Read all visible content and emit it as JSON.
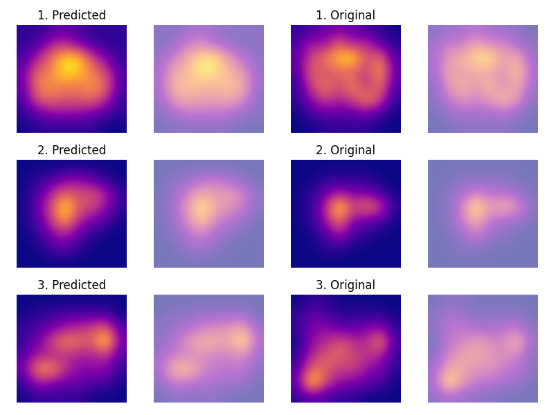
{
  "chart_data": [
    {
      "type": "heatmap",
      "title": "1. Predicted",
      "tick_labels": false,
      "cells": [
        [
          0.1,
          0.1,
          0.15,
          0.2,
          0.15,
          0.1,
          0.1,
          0.1
        ],
        [
          0.1,
          0.15,
          0.35,
          0.4,
          0.25,
          0.15,
          0.1,
          0.1
        ],
        [
          0.15,
          0.35,
          0.55,
          0.8,
          0.8,
          0.45,
          0.25,
          0.1
        ],
        [
          0.2,
          0.55,
          0.6,
          0.85,
          0.75,
          0.6,
          0.45,
          0.15
        ],
        [
          0.2,
          0.6,
          0.65,
          0.6,
          0.6,
          0.65,
          0.55,
          0.15
        ],
        [
          0.15,
          0.5,
          0.55,
          0.5,
          0.5,
          0.55,
          0.4,
          0.1
        ],
        [
          0.1,
          0.2,
          0.3,
          0.3,
          0.3,
          0.25,
          0.15,
          0.1
        ],
        [
          0.05,
          0.1,
          0.1,
          0.1,
          0.1,
          0.1,
          0.05,
          0.05
        ]
      ]
    },
    {
      "type": "heatmap",
      "title": "1. Original",
      "tick_labels": false,
      "cells": [
        [
          0.1,
          0.15,
          0.2,
          0.25,
          0.2,
          0.15,
          0.1,
          0.05
        ],
        [
          0.15,
          0.35,
          0.3,
          0.55,
          0.35,
          0.4,
          0.2,
          0.1
        ],
        [
          0.2,
          0.45,
          0.6,
          0.75,
          0.85,
          0.45,
          0.6,
          0.15
        ],
        [
          0.15,
          0.55,
          0.45,
          0.55,
          0.5,
          0.4,
          0.7,
          0.2
        ],
        [
          0.1,
          0.45,
          0.6,
          0.45,
          0.65,
          0.35,
          0.6,
          0.15
        ],
        [
          0.1,
          0.3,
          0.45,
          0.35,
          0.45,
          0.65,
          0.45,
          0.1
        ],
        [
          0.05,
          0.15,
          0.2,
          0.2,
          0.2,
          0.25,
          0.15,
          0.05
        ],
        [
          0.05,
          0.05,
          0.1,
          0.1,
          0.1,
          0.1,
          0.05,
          0.05
        ]
      ]
    },
    {
      "type": "heatmap",
      "title": "2. Predicted",
      "tick_labels": false,
      "cells": [
        [
          0.05,
          0.05,
          0.05,
          0.05,
          0.05,
          0.05,
          0.05,
          0.05
        ],
        [
          0.05,
          0.1,
          0.15,
          0.25,
          0.3,
          0.2,
          0.1,
          0.05
        ],
        [
          0.05,
          0.15,
          0.35,
          0.55,
          0.45,
          0.5,
          0.35,
          0.1
        ],
        [
          0.05,
          0.2,
          0.45,
          0.85,
          0.5,
          0.45,
          0.3,
          0.1
        ],
        [
          0.05,
          0.15,
          0.4,
          0.7,
          0.35,
          0.25,
          0.15,
          0.05
        ],
        [
          0.05,
          0.1,
          0.25,
          0.35,
          0.2,
          0.1,
          0.05,
          0.05
        ],
        [
          0.05,
          0.05,
          0.15,
          0.2,
          0.1,
          0.05,
          0.05,
          0.05
        ],
        [
          0.05,
          0.05,
          0.05,
          0.05,
          0.05,
          0.05,
          0.05,
          0.05
        ]
      ]
    },
    {
      "type": "heatmap",
      "title": "2. Original",
      "tick_labels": false,
      "cells": [
        [
          0.05,
          0.05,
          0.05,
          0.05,
          0.05,
          0.05,
          0.05,
          0.05
        ],
        [
          0.05,
          0.05,
          0.1,
          0.1,
          0.1,
          0.1,
          0.05,
          0.05
        ],
        [
          0.05,
          0.1,
          0.2,
          0.35,
          0.25,
          0.25,
          0.15,
          0.05
        ],
        [
          0.05,
          0.1,
          0.35,
          0.85,
          0.45,
          0.6,
          0.45,
          0.1
        ],
        [
          0.05,
          0.1,
          0.3,
          0.6,
          0.25,
          0.2,
          0.15,
          0.05
        ],
        [
          0.05,
          0.05,
          0.15,
          0.35,
          0.15,
          0.1,
          0.05,
          0.05
        ],
        [
          0.05,
          0.05,
          0.1,
          0.1,
          0.05,
          0.05,
          0.05,
          0.05
        ],
        [
          0.05,
          0.05,
          0.05,
          0.05,
          0.05,
          0.05,
          0.05,
          0.05
        ]
      ]
    },
    {
      "type": "heatmap",
      "title": "3. Predicted",
      "tick_labels": false,
      "cells": [
        [
          0.1,
          0.1,
          0.1,
          0.1,
          0.1,
          0.1,
          0.1,
          0.1
        ],
        [
          0.1,
          0.15,
          0.15,
          0.2,
          0.2,
          0.2,
          0.2,
          0.1
        ],
        [
          0.15,
          0.2,
          0.25,
          0.35,
          0.4,
          0.45,
          0.55,
          0.2
        ],
        [
          0.15,
          0.25,
          0.45,
          0.6,
          0.55,
          0.5,
          0.8,
          0.25
        ],
        [
          0.2,
          0.35,
          0.35,
          0.4,
          0.35,
          0.35,
          0.4,
          0.2
        ],
        [
          0.25,
          0.6,
          0.65,
          0.4,
          0.3,
          0.3,
          0.3,
          0.15
        ],
        [
          0.15,
          0.35,
          0.3,
          0.25,
          0.25,
          0.2,
          0.2,
          0.1
        ],
        [
          0.1,
          0.15,
          0.15,
          0.15,
          0.15,
          0.1,
          0.1,
          0.1
        ]
      ]
    },
    {
      "type": "heatmap",
      "title": "3. Original",
      "tick_labels": false,
      "cells": [
        [
          0.05,
          0.1,
          0.1,
          0.05,
          0.05,
          0.05,
          0.05,
          0.05
        ],
        [
          0.1,
          0.2,
          0.15,
          0.1,
          0.1,
          0.1,
          0.1,
          0.05
        ],
        [
          0.1,
          0.25,
          0.3,
          0.2,
          0.2,
          0.25,
          0.3,
          0.1
        ],
        [
          0.05,
          0.3,
          0.35,
          0.5,
          0.4,
          0.35,
          0.65,
          0.15
        ],
        [
          0.1,
          0.35,
          0.5,
          0.55,
          0.45,
          0.4,
          0.35,
          0.1
        ],
        [
          0.15,
          0.55,
          0.55,
          0.4,
          0.45,
          0.3,
          0.25,
          0.1
        ],
        [
          0.2,
          0.85,
          0.45,
          0.3,
          0.25,
          0.2,
          0.15,
          0.05
        ],
        [
          0.1,
          0.2,
          0.15,
          0.1,
          0.1,
          0.05,
          0.05,
          0.05
        ]
      ]
    }
  ]
}
